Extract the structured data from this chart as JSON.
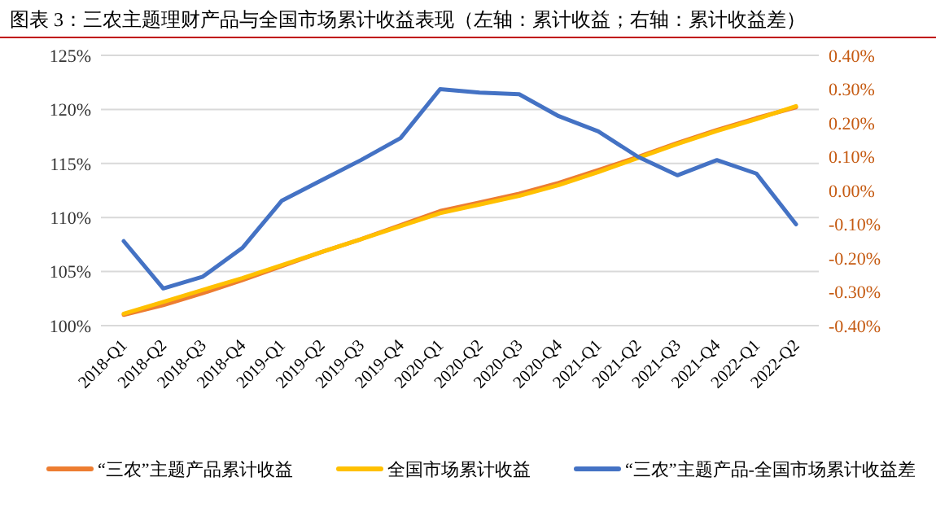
{
  "chart_data": {
    "type": "line",
    "title": "图表 3：三农主题理财产品与全国市场累计收益表现（左轴：累计收益；右轴：累计收益差）",
    "categories": [
      "2018-Q1",
      "2018-Q2",
      "2018-Q3",
      "2018-Q4",
      "2019-Q1",
      "2019-Q2",
      "2019-Q3",
      "2019-Q4",
      "2020-Q1",
      "2020-Q2",
      "2020-Q3",
      "2020-Q4",
      "2021-Q1",
      "2021-Q2",
      "2021-Q3",
      "2021-Q4",
      "2022-Q1",
      "2022-Q2"
    ],
    "series": [
      {
        "name": "“三农”主题产品累计收益",
        "color": "#ed7d31",
        "values": [
          101.0,
          101.9,
          103.0,
          104.2,
          105.5,
          106.8,
          108.0,
          109.3,
          110.6,
          111.4,
          112.2,
          113.2,
          114.4,
          115.6,
          116.9,
          118.1,
          119.2,
          120.2
        ]
      },
      {
        "name": "全国市场累计收益",
        "color": "#ffc000",
        "values": [
          101.1,
          102.2,
          103.3,
          104.4,
          105.6,
          106.8,
          108.0,
          109.2,
          110.4,
          111.2,
          112.0,
          113.0,
          114.2,
          115.5,
          116.8,
          118.0,
          119.1,
          120.3
        ]
      },
      {
        "name": "“三农”主题产品-全国市场累计收益差",
        "color": "#4472c4",
        "axis": "y2",
        "values": [
          -0.15,
          -0.29,
          -0.255,
          -0.17,
          -0.03,
          0.03,
          0.09,
          0.155,
          0.3,
          0.29,
          0.285,
          0.22,
          0.175,
          0.1,
          0.045,
          0.09,
          0.05,
          -0.1
        ]
      }
    ],
    "ylim": [
      100,
      125
    ],
    "yticks": [
      {
        "value": 100,
        "label": "100%"
      },
      {
        "value": 105,
        "label": "105%"
      },
      {
        "value": 110,
        "label": "110%"
      },
      {
        "value": 115,
        "label": "115%"
      },
      {
        "value": 120,
        "label": "120%"
      },
      {
        "value": 125,
        "label": "125%"
      }
    ],
    "y2lim": [
      -0.4,
      0.4
    ],
    "y2ticks": [
      {
        "value": -0.4,
        "label": "-0.40%"
      },
      {
        "value": -0.3,
        "label": "-0.30%"
      },
      {
        "value": -0.2,
        "label": "-0.20%"
      },
      {
        "value": -0.1,
        "label": "-0.10%"
      },
      {
        "value": 0,
        "label": "0.00%"
      },
      {
        "value": 0.1,
        "label": "0.10%"
      },
      {
        "value": 0.2,
        "label": "0.20%"
      },
      {
        "value": 0.3,
        "label": "0.30%"
      },
      {
        "value": 0.4,
        "label": "0.40%"
      }
    ],
    "grid": "y",
    "legend": "bottom",
    "marker": "none",
    "line_style": "solid"
  }
}
